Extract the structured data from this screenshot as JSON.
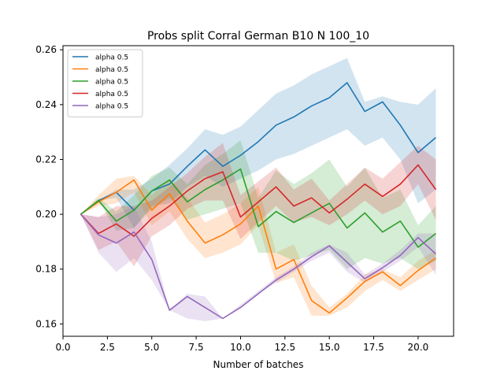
{
  "chart_data": {
    "type": "line",
    "title": "Probs split Corral German B10 N 100_10",
    "xlabel": "Number of batches",
    "ylabel": "",
    "xlim": [
      0.0,
      22.0
    ],
    "ylim": [
      0.1555,
      0.2615
    ],
    "xticks": [
      0.0,
      2.5,
      5.0,
      7.5,
      10.0,
      12.5,
      15.0,
      17.5,
      20.0
    ],
    "xtick_labels": [
      "0.0",
      "2.5",
      "5.0",
      "7.5",
      "10.0",
      "12.5",
      "15.0",
      "17.5",
      "20.0"
    ],
    "yticks": [
      0.16,
      0.18,
      0.2,
      0.22,
      0.24,
      0.26
    ],
    "ytick_labels": [
      "0.16",
      "0.18",
      "0.20",
      "0.22",
      "0.24",
      "0.26"
    ],
    "grid": false,
    "legend_position": "top-left",
    "x": [
      1,
      2,
      3,
      4,
      5,
      6,
      7,
      8,
      9,
      10,
      11,
      12,
      13,
      14,
      15,
      16,
      17,
      18,
      19,
      20,
      21
    ],
    "series": [
      {
        "name": "alpha 0.5",
        "color": "#1f77b4",
        "values": [
          0.2,
          0.205,
          0.208,
          0.2015,
          0.2085,
          0.211,
          0.2175,
          0.2235,
          0.2175,
          0.2215,
          0.2265,
          0.2325,
          0.2355,
          0.2395,
          0.2425,
          0.248,
          0.2375,
          0.241,
          0.2325,
          0.2225,
          0.228
        ],
        "lower": [
          0.2,
          0.205,
          0.206,
          0.195,
          0.203,
          0.204,
          0.21,
          0.214,
          0.21,
          0.213,
          0.216,
          0.22,
          0.222,
          0.225,
          0.228,
          0.231,
          0.225,
          0.228,
          0.22,
          0.204,
          0.209
        ],
        "upper": [
          0.2,
          0.205,
          0.209,
          0.209,
          0.213,
          0.218,
          0.224,
          0.231,
          0.229,
          0.232,
          0.238,
          0.244,
          0.247,
          0.251,
          0.254,
          0.257,
          0.241,
          0.243,
          0.241,
          0.24,
          0.246
        ]
      },
      {
        "name": "alpha 0.5",
        "color": "#ff7f0e",
        "values": [
          0.2,
          0.2045,
          0.208,
          0.2125,
          0.2015,
          0.2075,
          0.1975,
          0.1895,
          0.1925,
          0.1965,
          0.203,
          0.18,
          0.1835,
          0.1685,
          0.164,
          0.1695,
          0.1755,
          0.179,
          0.174,
          0.1795,
          0.184
        ],
        "lower": [
          0.2,
          0.203,
          0.204,
          0.208,
          0.196,
          0.201,
          0.191,
          0.184,
          0.186,
          0.189,
          0.196,
          0.175,
          0.177,
          0.163,
          0.163,
          0.166,
          0.172,
          0.176,
          0.172,
          0.176,
          0.18
        ],
        "upper": [
          0.2,
          0.207,
          0.213,
          0.214,
          0.207,
          0.213,
          0.206,
          0.197,
          0.2,
          0.204,
          0.21,
          0.186,
          0.189,
          0.174,
          0.166,
          0.171,
          0.178,
          0.18,
          0.177,
          0.183,
          0.187
        ]
      },
      {
        "name": "alpha 0.5",
        "color": "#2ca02c",
        "values": [
          0.2,
          0.205,
          0.1975,
          0.2015,
          0.2085,
          0.2125,
          0.2045,
          0.209,
          0.2125,
          0.2165,
          0.1955,
          0.201,
          0.197,
          0.2005,
          0.204,
          0.195,
          0.2005,
          0.1935,
          0.1975,
          0.188,
          0.193
        ],
        "lower": [
          0.2,
          0.205,
          0.194,
          0.195,
          0.202,
          0.206,
          0.198,
          0.2,
          0.202,
          0.204,
          0.186,
          0.186,
          0.183,
          0.185,
          0.187,
          0.18,
          0.184,
          0.182,
          0.184,
          0.18,
          0.183
        ],
        "upper": [
          0.2,
          0.206,
          0.201,
          0.207,
          0.214,
          0.217,
          0.211,
          0.218,
          0.222,
          0.227,
          0.206,
          0.216,
          0.211,
          0.215,
          0.22,
          0.21,
          0.217,
          0.206,
          0.209,
          0.196,
          0.203
        ]
      },
      {
        "name": "alpha 0.5",
        "color": "#d62728",
        "values": [
          0.2,
          0.193,
          0.1965,
          0.192,
          0.1985,
          0.203,
          0.2085,
          0.213,
          0.2155,
          0.199,
          0.2045,
          0.21,
          0.203,
          0.206,
          0.2005,
          0.2055,
          0.211,
          0.2065,
          0.211,
          0.218,
          0.209
        ],
        "lower": [
          0.2,
          0.187,
          0.19,
          0.181,
          0.192,
          0.196,
          0.202,
          0.205,
          0.205,
          0.191,
          0.197,
          0.203,
          0.197,
          0.199,
          0.196,
          0.2,
          0.205,
          0.2,
          0.203,
          0.211,
          0.198
        ],
        "upper": [
          0.2,
          0.199,
          0.203,
          0.203,
          0.205,
          0.21,
          0.215,
          0.221,
          0.226,
          0.207,
          0.212,
          0.217,
          0.209,
          0.213,
          0.205,
          0.211,
          0.217,
          0.213,
          0.219,
          0.225,
          0.22
        ]
      },
      {
        "name": "alpha 0.5",
        "color": "#9467bd",
        "values": [
          0.2,
          0.1925,
          0.1895,
          0.1935,
          0.1835,
          0.165,
          0.17,
          0.166,
          0.162,
          0.166,
          0.171,
          0.176,
          0.18,
          0.1845,
          0.1885,
          0.1825,
          0.1765,
          0.1805,
          0.185,
          0.1915,
          0.1855
        ],
        "lower": [
          0.2,
          0.186,
          0.179,
          0.184,
          0.176,
          0.165,
          0.162,
          0.161,
          0.162,
          0.166,
          0.171,
          0.175,
          0.179,
          0.183,
          0.186,
          0.179,
          0.175,
          0.179,
          0.183,
          0.188,
          0.178
        ],
        "upper": [
          0.2,
          0.199,
          0.2,
          0.203,
          0.19,
          0.165,
          0.171,
          0.17,
          0.162,
          0.167,
          0.172,
          0.177,
          0.181,
          0.186,
          0.189,
          0.186,
          0.178,
          0.182,
          0.187,
          0.193,
          0.193
        ]
      }
    ]
  }
}
